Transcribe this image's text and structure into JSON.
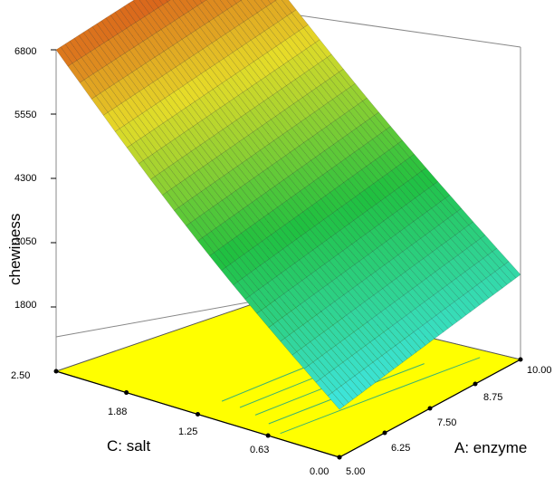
{
  "chart_data": {
    "type": "surface3d",
    "zlabel": "chewiness",
    "xlabel": "A: enzyme",
    "ylabel": "C: salt",
    "z_ticks": [
      "1800",
      "3050",
      "4300",
      "5550",
      "6800"
    ],
    "x_ticks": [
      "5.00",
      "6.25",
      "7.50",
      "8.75",
      "10.00"
    ],
    "y_ticks": [
      "0.00",
      "0.63",
      "1.25",
      "1.88",
      "2.50"
    ],
    "x_range": [
      5.0,
      10.0
    ],
    "y_range": [
      0.0,
      2.5
    ],
    "z_range": [
      550,
      6800
    ],
    "corner_values": [
      {
        "enzyme": 5.0,
        "salt": 2.5,
        "chewiness": 6800
      },
      {
        "enzyme": 10.0,
        "salt": 2.5,
        "chewiness": 7150
      },
      {
        "enzyme": 10.0,
        "salt": 0.0,
        "chewiness": 2200
      },
      {
        "enzyme": 5.0,
        "salt": 0.0,
        "chewiness": 1480
      }
    ],
    "colors": {
      "high": "#d95a1a",
      "mid": "#20c040",
      "low": "#40e8e8",
      "floor": "#ffff00",
      "contour": "#3cb371"
    }
  }
}
